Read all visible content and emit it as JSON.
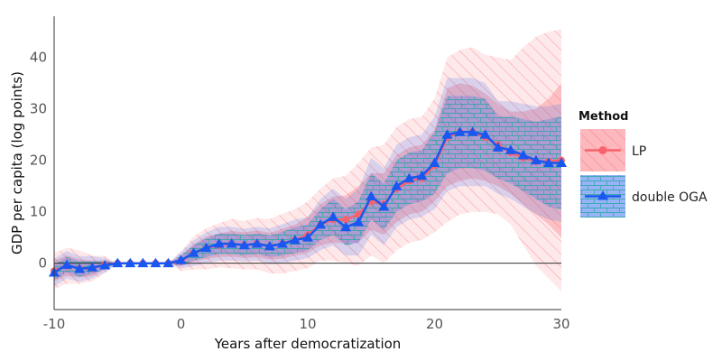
{
  "chart_data": {
    "type": "line",
    "title": "",
    "xlabel": "Years after democratization",
    "ylabel": "GDP per capita (log points)",
    "xlim": [
      -10,
      30
    ],
    "ylim": [
      -9,
      48
    ],
    "x_ticks": [
      -10,
      0,
      10,
      20,
      30
    ],
    "y_ticks": [
      0,
      10,
      20,
      30,
      40
    ],
    "x_tick_labels": [
      "-10",
      "0",
      "10",
      "20",
      "30"
    ],
    "y_tick_labels": [
      "0",
      "10",
      "20",
      "30",
      "40"
    ],
    "reference_line_y": 0,
    "legend": {
      "title": "Method",
      "position": "right"
    },
    "x": [
      -10,
      -9,
      -8,
      -7,
      -6,
      -5,
      -4,
      -3,
      -2,
      -1,
      0,
      1,
      2,
      3,
      4,
      5,
      6,
      7,
      8,
      9,
      10,
      11,
      12,
      13,
      14,
      15,
      16,
      17,
      18,
      19,
      20,
      21,
      22,
      23,
      24,
      25,
      26,
      27,
      28,
      29,
      30
    ],
    "series": [
      {
        "name": "LP",
        "color": "#f8626d",
        "marker": "circle",
        "values": [
          -1.5,
          -0.5,
          -1,
          -1,
          -0.3,
          0,
          0,
          0,
          0,
          0,
          0.4,
          2,
          3,
          3.5,
          3.8,
          3.5,
          3.8,
          3.3,
          3.8,
          4.5,
          5.5,
          7.5,
          8.5,
          8.5,
          9.5,
          12,
          11.5,
          14.5,
          16,
          16.5,
          19,
          24.5,
          25.5,
          25.5,
          24.5,
          23,
          21.5,
          20.5,
          19.8,
          19.8,
          20
        ],
        "band_inner_lower": [
          -3.5,
          -2.5,
          -2.8,
          -2.5,
          -1.2,
          0,
          0,
          0,
          0,
          0,
          -0.6,
          0.3,
          0.8,
          1.2,
          1.3,
          1,
          1.2,
          0.7,
          0.9,
          1.5,
          2,
          3.5,
          4,
          3.8,
          4,
          6.5,
          5.5,
          8,
          9.5,
          10,
          12,
          15,
          16,
          16.5,
          16,
          15,
          13.5,
          11.5,
          9.5,
          7.5,
          5
        ],
        "band_inner_upper": [
          0.5,
          1.5,
          0.8,
          0.5,
          0.6,
          0,
          0,
          0,
          0,
          0,
          1.4,
          3.7,
          5.2,
          5.8,
          6.3,
          6,
          6.4,
          5.9,
          6.7,
          7.5,
          9,
          11.5,
          13,
          13.2,
          15,
          17.5,
          17.5,
          21,
          22.5,
          23,
          26,
          34,
          35,
          34.5,
          33,
          31,
          29.5,
          29.5,
          30,
          32,
          35
        ],
        "band_outer_lower": [
          -5,
          -4,
          -4,
          -3.5,
          -2,
          0,
          0,
          0,
          0,
          0,
          -1.5,
          -1.2,
          -1.2,
          -0.8,
          -1,
          -1.2,
          -1.2,
          -2,
          -2,
          -1.5,
          -1,
          0.5,
          0.5,
          0,
          -0.5,
          1.5,
          0,
          2.5,
          4,
          4.5,
          6,
          8,
          9.5,
          10,
          10,
          9.5,
          7.5,
          3.5,
          -0.5,
          -3,
          -5.5
        ],
        "band_outer_upper": [
          2,
          3,
          2.5,
          1.5,
          1.4,
          0,
          0,
          0,
          0,
          0,
          2.3,
          5.2,
          6.8,
          7.8,
          8.6,
          8.2,
          8.8,
          8.6,
          9.6,
          10.5,
          12,
          14.5,
          16.5,
          17,
          19.5,
          22.5,
          23,
          26.5,
          28,
          28.5,
          32,
          40,
          41.5,
          42,
          40.5,
          40,
          39.5,
          42,
          44,
          45,
          45.5
        ]
      },
      {
        "name": "double OGA",
        "color": "#1a57f0",
        "marker": "triangle",
        "values": [
          -1.8,
          -0.3,
          -1.1,
          -0.8,
          -0.4,
          0,
          0,
          0,
          0,
          0,
          0.6,
          2,
          3,
          3.8,
          3.8,
          3.5,
          3.8,
          3.3,
          3.8,
          4.5,
          5,
          7.5,
          9,
          7,
          8,
          13,
          11,
          15,
          16.5,
          17,
          19.5,
          25,
          25.5,
          25.5,
          25,
          22.5,
          22,
          21,
          20,
          19.5,
          19.5
        ],
        "band_inner_lower": [
          -3.3,
          -1.8,
          -2.6,
          -2,
          -1.2,
          0,
          0,
          0,
          0,
          0,
          -0.4,
          0.5,
          1.2,
          1.8,
          1.8,
          1.5,
          1.8,
          1.2,
          1.5,
          2,
          2.5,
          4.5,
          5.5,
          3.5,
          4,
          8.5,
          6.5,
          10,
          11.5,
          12,
          13.5,
          17.5,
          18.5,
          18.5,
          18,
          16.5,
          15.5,
          14,
          12.5,
          11,
          10.5
        ],
        "band_inner_upper": [
          -0.3,
          1.2,
          0.4,
          0.4,
          0.4,
          0,
          0,
          0,
          0,
          0,
          1.6,
          3.5,
          4.8,
          5.8,
          5.8,
          5.5,
          5.8,
          5.4,
          6.1,
          7,
          7.5,
          10.5,
          12.5,
          10.5,
          12,
          17.5,
          15.5,
          20,
          21.5,
          22,
          25.5,
          32.5,
          32.5,
          32.5,
          32,
          28.5,
          28.5,
          28,
          27.5,
          28,
          28.5
        ],
        "band_outer_lower": [
          -4.5,
          -3,
          -3.6,
          -3,
          -1.8,
          0,
          0,
          0,
          0,
          0,
          -1,
          -0.5,
          0,
          0.5,
          0.5,
          0.3,
          0.5,
          -0.2,
          0,
          0.5,
          1,
          2.5,
          3.5,
          1.5,
          1.5,
          5.5,
          3.5,
          7,
          8.5,
          9,
          10.5,
          14,
          15,
          15,
          15,
          13.5,
          12.5,
          11,
          9.5,
          8.5,
          8
        ],
        "band_outer_upper": [
          0.9,
          2.4,
          1.4,
          1.4,
          1,
          0,
          0,
          0,
          0,
          0,
          2.2,
          4.5,
          6,
          7.1,
          7.1,
          6.7,
          7.1,
          6.8,
          7.6,
          8.5,
          9,
          12.5,
          14.5,
          12.5,
          14.5,
          20.5,
          18.5,
          23,
          24.5,
          25,
          28.5,
          36,
          36,
          36,
          35,
          31.5,
          31.5,
          31,
          30.5,
          30.5,
          31
        ]
      }
    ]
  }
}
